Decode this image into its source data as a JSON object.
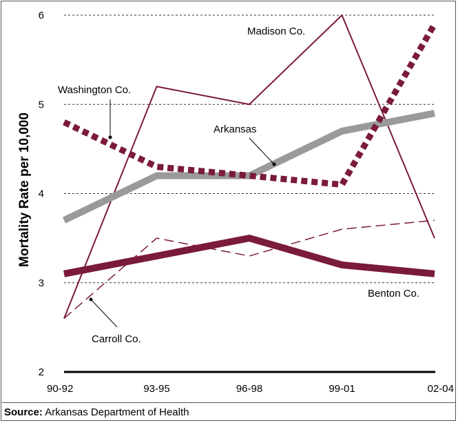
{
  "chart_data": {
    "type": "line",
    "ylabel": "Mortality Rate per 10,000",
    "xlabel": "",
    "categories": [
      "90-92",
      "93-95",
      "96-98",
      "99-01",
      "02-04"
    ],
    "ylim": [
      2,
      6
    ],
    "yticks": [
      "2",
      "3",
      "4",
      "5",
      "6"
    ],
    "grid": true,
    "series": [
      {
        "name": "Arkansas",
        "color": "#9a9a9a",
        "style": "solid-thick",
        "points": [
          [
            0,
            3.7
          ],
          [
            1,
            4.2
          ],
          [
            2,
            4.2
          ],
          [
            3,
            4.7
          ],
          [
            4,
            4.9
          ]
        ]
      },
      {
        "name": "Madison Co.",
        "color": "#7a1a3c",
        "style": "solid-thin",
        "points": [
          [
            0,
            2.6
          ],
          [
            1,
            5.2
          ],
          [
            2,
            5.0
          ],
          [
            3,
            6.0
          ],
          [
            4,
            3.5
          ]
        ]
      },
      {
        "name": "Washington Co.",
        "color": "#7a1a3c",
        "style": "dotted-thick",
        "points": [
          [
            0,
            4.8
          ],
          [
            1,
            4.3
          ],
          [
            2,
            4.2
          ],
          [
            3,
            4.1
          ],
          [
            4,
            5.9
          ]
        ]
      },
      {
        "name": "Benton Co.",
        "color": "#7a1a3c",
        "style": "solid-thick",
        "points": [
          [
            0,
            3.1
          ],
          [
            1,
            3.3
          ],
          [
            2,
            3.5
          ],
          [
            3,
            3.2
          ],
          [
            4,
            3.1
          ]
        ]
      },
      {
        "name": "Carroll Co.",
        "color": "#7a1a3c",
        "style": "dashed-thin",
        "points": [
          [
            0,
            2.6
          ],
          [
            1,
            3.5
          ],
          [
            2,
            3.3
          ],
          [
            3,
            3.6
          ],
          [
            4,
            3.7
          ]
        ]
      }
    ]
  },
  "source": {
    "label": "Source:",
    "text": "Arkansas Department of Health"
  }
}
